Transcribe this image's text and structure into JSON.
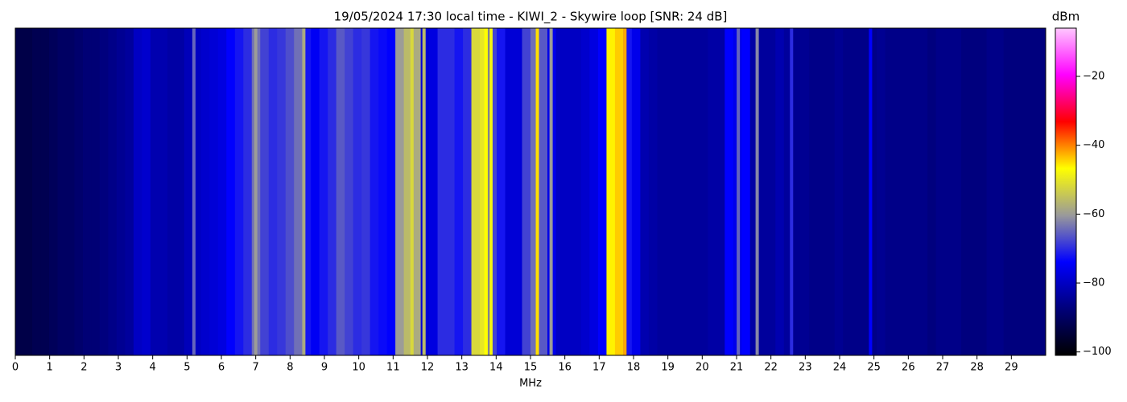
{
  "chart_data": {
    "type": "spectrogram",
    "title": "19/05/2024 17:30 local time - KIWI_2 - Skywire loop [SNR: 24 dB]",
    "xlabel": "MHz",
    "colorbar_label": "dBm",
    "xlim": [
      0,
      30
    ],
    "xticks": [
      0,
      1,
      2,
      3,
      4,
      5,
      6,
      7,
      8,
      9,
      10,
      11,
      12,
      13,
      14,
      15,
      16,
      17,
      18,
      19,
      20,
      21,
      22,
      23,
      24,
      25,
      26,
      27,
      28,
      29
    ],
    "clim": [
      -101,
      -6
    ],
    "cticks": [
      {
        "value": -100,
        "label": "−100"
      },
      {
        "value": -80,
        "label": "−80"
      },
      {
        "value": -60,
        "label": "−60"
      },
      {
        "value": -40,
        "label": "−40"
      },
      {
        "value": -20,
        "label": "−20"
      }
    ],
    "colormap": [
      "#000000",
      "#00007a",
      "#0000ff",
      "#9a9a9a",
      "#ffff00",
      "#ff0000",
      "#ff00ff",
      "#ffc8ff"
    ],
    "values": [
      -93,
      -93,
      -92,
      -92,
      -91,
      -90,
      -90,
      -89,
      -88,
      -88,
      -87,
      -86,
      -85,
      -84,
      -80,
      -79,
      -82,
      -82,
      -83,
      -83,
      -81,
      -80,
      -79,
      -78,
      -77,
      -74,
      -72,
      -70,
      -64,
      -68,
      -70,
      -69,
      -67,
      -64,
      -72,
      -75,
      -72,
      -70,
      -66,
      -68,
      -70,
      -69,
      -72,
      -73,
      -74,
      -60,
      -56,
      -58,
      -78,
      -77,
      -70,
      -70,
      -72,
      -70,
      -52,
      -50,
      -68,
      -72,
      -78,
      -78,
      -68,
      -64,
      -66,
      -76,
      -80,
      -80,
      -80,
      -79,
      -77,
      -74,
      -46,
      -44,
      -72,
      -76,
      -82,
      -83,
      -84,
      -84,
      -84,
      -84,
      -84,
      -84,
      -83,
      -83,
      -74,
      -76,
      -74,
      -83,
      -84,
      -84,
      -82,
      -84,
      -85,
      -85,
      -86,
      -86,
      -86,
      -85,
      -86,
      -86,
      -86,
      -86,
      -85,
      -86,
      -86,
      -86,
      -86,
      -86,
      -87,
      -86,
      -86,
      -86,
      -87,
      -87,
      -87,
      -86,
      -86,
      -87,
      -87,
      -87,
      -87,
      -87
    ],
    "signals": {
      "x": [
        5.2,
        7.0,
        8.4,
        11.55,
        11.9,
        13.7,
        13.85,
        15.2,
        15.6,
        17.6,
        17.75,
        21.05,
        21.6,
        22.6,
        24.9
      ],
      "values": [
        -65,
        -60,
        -58,
        -52,
        -56,
        -47,
        -48,
        -45,
        -60,
        -44,
        -42,
        -65,
        -62,
        -70,
        -74
      ]
    }
  }
}
